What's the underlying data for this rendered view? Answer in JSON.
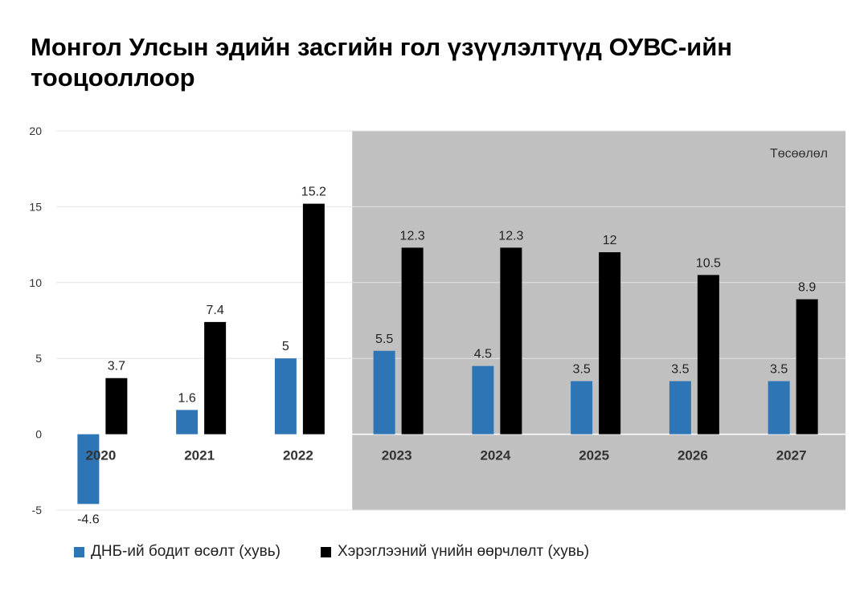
{
  "title": "Монгол Улсын эдийн засгийн гол үзүүлэлтүүд ОУВС-ийн тооцооллоор",
  "chart_data": {
    "type": "bar",
    "categories": [
      "2020",
      "2021",
      "2022",
      "2023",
      "2024",
      "2025",
      "2026",
      "2027"
    ],
    "series": [
      {
        "name": "ДНБ-ий бодит өсөлт (хувь)",
        "color": "#2e75b6",
        "values": [
          -4.6,
          1.6,
          5,
          5.5,
          4.5,
          3.5,
          3.5,
          3.5
        ],
        "labels": [
          "-4.6",
          "1.6",
          "5",
          "5.5",
          "4.5",
          "3.5",
          "3.5",
          "3.5"
        ]
      },
      {
        "name": "Хэрэглээний үнийн өөрчлөлт (хувь)",
        "color": "#000000",
        "values": [
          3.7,
          7.4,
          15.2,
          12.3,
          12.3,
          12,
          10.5,
          8.9
        ],
        "labels": [
          "3.7",
          "7.4",
          "15.2",
          "12.3",
          "12.3",
          "12",
          "10.5",
          "8.9"
        ]
      }
    ],
    "ylim": [
      -5,
      20
    ],
    "yticks": [
      -5,
      0,
      5,
      10,
      15,
      20
    ],
    "ytick_labels": [
      "-5",
      "0",
      "5",
      "10",
      "15",
      "20"
    ],
    "grid": true,
    "legend": "bottom-left",
    "forecast": {
      "label": "Төсөөлөл",
      "from_category": "2023",
      "to_category": "2027",
      "color": "#c0c0c0"
    }
  }
}
